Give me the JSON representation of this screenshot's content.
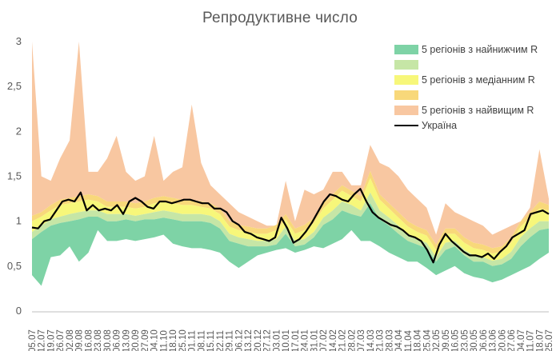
{
  "colors": {
    "band_low_outer": "#7ed3a6",
    "band_low_inner": "#c6e6a6",
    "band_mid_outer": "#f7f77a",
    "band_mid_inner": "#f8d87a",
    "band_high": "#f8c7a1",
    "line_ukraine": "#000000",
    "axis_text": "#595959"
  },
  "chart_data": {
    "type": "area",
    "title": "Репродуктивне число",
    "xlabel": "",
    "ylabel": "",
    "ylim": [
      0,
      3
    ],
    "yticks": [
      0,
      0.5,
      1,
      1.5,
      2,
      2.5,
      3
    ],
    "ytick_labels": [
      "0",
      "0,5",
      "1",
      "1,5",
      "2",
      "2,5",
      "3"
    ],
    "grid": false,
    "legend_position": "top-right",
    "x_tick_labels": [
      "05.07",
      "12.07",
      "19.07",
      "26.07",
      "02.08",
      "09.08",
      "16.08",
      "23.08",
      "30.08",
      "06.09",
      "13.09",
      "20.09",
      "27.09",
      "04.10",
      "11.10",
      "18.10",
      "25.10",
      "01.11",
      "08.11",
      "15.11",
      "22.11",
      "29.11",
      "06.12",
      "13.12",
      "20.12",
      "27.12",
      "03.01",
      "10.01",
      "17.01",
      "24.01",
      "31.01",
      "07.02",
      "14.02",
      "21.02",
      "28.02",
      "07.03",
      "14.03",
      "21.03",
      "28.03",
      "04.04",
      "11.04",
      "18.04",
      "25.04",
      "02.05",
      "09.05",
      "16.05",
      "23.05",
      "30.05",
      "06.06",
      "13.06",
      "20.06",
      "27.06",
      "04.07",
      "11.07",
      "18.07",
      "25.07"
    ],
    "series": [
      {
        "name": "5 регіонів з найнижчим R",
        "band": "low",
        "values_min": [
          0.4,
          0.28,
          0.6,
          0.62,
          0.72,
          0.55,
          0.65,
          0.9,
          0.78,
          0.78,
          0.8,
          0.78,
          0.8,
          0.82,
          0.85,
          0.75,
          0.72,
          0.7,
          0.7,
          0.68,
          0.65,
          0.55,
          0.48,
          0.55,
          0.62,
          0.65,
          0.68,
          0.7,
          0.65,
          0.68,
          0.72,
          0.7,
          0.75,
          0.8,
          0.9,
          0.78,
          0.78,
          0.72,
          0.65,
          0.6,
          0.55,
          0.55,
          0.48,
          0.4,
          0.45,
          0.5,
          0.42,
          0.38,
          0.36,
          0.32,
          0.35,
          0.4,
          0.45,
          0.5,
          0.58,
          0.65
        ],
        "values_max": [
          0.8,
          0.88,
          0.95,
          0.98,
          1.0,
          1.02,
          1.05,
          1.05,
          1.0,
          1.0,
          1.02,
          1.0,
          1.02,
          1.02,
          1.04,
          1.02,
          1.0,
          1.0,
          1.0,
          0.98,
          0.92,
          0.78,
          0.75,
          0.72,
          0.72,
          0.72,
          0.74,
          0.86,
          0.72,
          0.74,
          0.82,
          0.96,
          1.02,
          1.12,
          1.08,
          1.05,
          1.2,
          1.02,
          0.95,
          0.86,
          0.78,
          0.74,
          0.7,
          0.55,
          0.68,
          0.72,
          0.62,
          0.55,
          0.55,
          0.5,
          0.52,
          0.58,
          0.72,
          0.82,
          0.9,
          0.92
        ]
      },
      {
        "name": "",
        "band": "low-inner",
        "values_min": [
          0.8,
          0.88,
          0.95,
          0.98,
          1.0,
          1.02,
          1.05,
          1.05,
          1.0,
          1.0,
          1.02,
          1.0,
          1.02,
          1.02,
          1.04,
          1.02,
          1.0,
          1.0,
          1.0,
          0.98,
          0.92,
          0.78,
          0.75,
          0.72,
          0.72,
          0.72,
          0.74,
          0.86,
          0.72,
          0.74,
          0.82,
          0.96,
          1.02,
          1.12,
          1.08,
          1.05,
          1.2,
          1.02,
          0.95,
          0.86,
          0.78,
          0.74,
          0.7,
          0.55,
          0.68,
          0.72,
          0.62,
          0.55,
          0.55,
          0.5,
          0.52,
          0.58,
          0.72,
          0.82,
          0.9,
          0.92
        ],
        "values_max": [
          0.88,
          0.95,
          1.02,
          1.05,
          1.08,
          1.1,
          1.12,
          1.12,
          1.08,
          1.08,
          1.08,
          1.06,
          1.08,
          1.1,
          1.12,
          1.1,
          1.08,
          1.08,
          1.08,
          1.06,
          1.0,
          0.86,
          0.82,
          0.8,
          0.78,
          0.78,
          0.8,
          0.94,
          0.78,
          0.8,
          0.88,
          1.04,
          1.12,
          1.22,
          1.18,
          1.12,
          1.32,
          1.12,
          1.04,
          0.95,
          0.86,
          0.8,
          0.76,
          0.6,
          0.76,
          0.78,
          0.68,
          0.62,
          0.6,
          0.56,
          0.58,
          0.66,
          0.82,
          0.92,
          1.0,
          1.0
        ]
      },
      {
        "name": "5 регіонів з медіанним R",
        "band": "mid",
        "values_min": [
          0.88,
          0.95,
          1.02,
          1.05,
          1.08,
          1.1,
          1.12,
          1.12,
          1.08,
          1.08,
          1.08,
          1.06,
          1.08,
          1.1,
          1.12,
          1.1,
          1.08,
          1.08,
          1.08,
          1.06,
          1.0,
          0.86,
          0.82,
          0.8,
          0.78,
          0.78,
          0.8,
          0.94,
          0.78,
          0.8,
          0.88,
          1.04,
          1.12,
          1.22,
          1.18,
          1.12,
          1.32,
          1.12,
          1.04,
          0.95,
          0.86,
          0.8,
          0.76,
          0.6,
          0.76,
          0.78,
          0.68,
          0.62,
          0.6,
          0.56,
          0.58,
          0.66,
          0.82,
          0.92,
          1.0,
          1.0
        ],
        "values_max": [
          1.0,
          1.05,
          1.12,
          1.18,
          1.2,
          1.22,
          1.24,
          1.22,
          1.16,
          1.16,
          1.16,
          1.14,
          1.16,
          1.2,
          1.22,
          1.2,
          1.18,
          1.18,
          1.16,
          1.14,
          1.08,
          0.94,
          0.9,
          0.88,
          0.86,
          0.86,
          0.9,
          1.02,
          0.86,
          0.9,
          0.98,
          1.14,
          1.24,
          1.34,
          1.28,
          1.22,
          1.48,
          1.24,
          1.14,
          1.04,
          0.94,
          0.88,
          0.84,
          0.68,
          0.86,
          0.86,
          0.76,
          0.7,
          0.68,
          0.64,
          0.66,
          0.76,
          0.94,
          1.04,
          1.14,
          1.12
        ]
      },
      {
        "name": "",
        "band": "mid-inner",
        "values_min": [
          1.0,
          1.05,
          1.12,
          1.18,
          1.2,
          1.22,
          1.24,
          1.22,
          1.16,
          1.16,
          1.16,
          1.14,
          1.16,
          1.2,
          1.22,
          1.2,
          1.18,
          1.18,
          1.16,
          1.14,
          1.08,
          0.94,
          0.9,
          0.88,
          0.86,
          0.86,
          0.9,
          1.02,
          0.86,
          0.9,
          0.98,
          1.14,
          1.24,
          1.34,
          1.28,
          1.22,
          1.48,
          1.24,
          1.14,
          1.04,
          0.94,
          0.88,
          0.84,
          0.68,
          0.86,
          0.86,
          0.76,
          0.7,
          0.68,
          0.64,
          0.66,
          0.76,
          0.94,
          1.04,
          1.14,
          1.12
        ],
        "values_max": [
          1.06,
          1.1,
          1.18,
          1.24,
          1.26,
          1.28,
          1.3,
          1.28,
          1.22,
          1.22,
          1.22,
          1.2,
          1.22,
          1.26,
          1.28,
          1.26,
          1.24,
          1.24,
          1.22,
          1.2,
          1.14,
          1.0,
          0.96,
          0.94,
          0.92,
          0.92,
          0.96,
          1.08,
          0.92,
          0.96,
          1.04,
          1.2,
          1.3,
          1.4,
          1.34,
          1.28,
          1.56,
          1.3,
          1.2,
          1.1,
          1.0,
          0.94,
          0.9,
          0.74,
          0.92,
          0.92,
          0.82,
          0.76,
          0.74,
          0.7,
          0.72,
          0.82,
          1.0,
          1.1,
          1.22,
          1.18
        ]
      },
      {
        "name": "5 регіонів з найвищим R",
        "band": "high",
        "values_min": [
          1.06,
          1.1,
          1.18,
          1.24,
          1.26,
          1.28,
          1.3,
          1.28,
          1.22,
          1.22,
          1.22,
          1.2,
          1.22,
          1.26,
          1.28,
          1.26,
          1.24,
          1.24,
          1.22,
          1.2,
          1.14,
          1.0,
          0.96,
          0.94,
          0.92,
          0.92,
          0.96,
          1.08,
          0.92,
          0.96,
          1.04,
          1.2,
          1.3,
          1.4,
          1.34,
          1.28,
          1.56,
          1.3,
          1.2,
          1.1,
          1.0,
          0.94,
          0.9,
          0.74,
          0.92,
          0.92,
          0.82,
          0.76,
          0.74,
          0.7,
          0.72,
          0.82,
          1.0,
          1.1,
          1.22,
          1.18
        ],
        "values_max": [
          3.0,
          1.5,
          1.45,
          1.7,
          1.9,
          3.0,
          1.55,
          1.55,
          1.7,
          1.95,
          1.55,
          1.45,
          1.5,
          1.95,
          1.45,
          1.55,
          1.6,
          2.3,
          1.65,
          1.4,
          1.3,
          1.2,
          1.1,
          1.05,
          1.0,
          0.95,
          0.95,
          1.45,
          1.0,
          1.35,
          1.3,
          1.35,
          1.55,
          1.55,
          1.4,
          1.4,
          1.85,
          1.65,
          1.6,
          1.5,
          1.35,
          1.25,
          1.15,
          0.85,
          1.2,
          1.1,
          1.05,
          1.0,
          0.95,
          0.85,
          0.9,
          0.95,
          1.0,
          1.15,
          1.8,
          1.25
        ]
      },
      {
        "name": "Україна",
        "band": "line",
        "values": [
          0.93,
          0.92,
          1.0,
          1.02,
          1.12,
          1.22,
          1.24,
          1.22,
          1.32,
          1.12,
          1.18,
          1.12,
          1.14,
          1.12,
          1.18,
          1.08,
          1.22,
          1.26,
          1.22,
          1.16,
          1.14,
          1.22,
          1.22,
          1.2,
          1.22,
          1.24,
          1.24,
          1.22,
          1.2,
          1.2,
          1.14,
          1.14,
          1.1,
          1.0,
          0.96,
          0.88,
          0.86,
          0.82,
          0.8,
          0.78,
          0.82,
          1.04,
          0.92,
          0.76,
          0.8,
          0.88,
          0.98,
          1.1,
          1.22,
          1.3,
          1.28,
          1.24,
          1.22,
          1.3,
          1.36,
          1.22,
          1.1,
          1.04,
          1.0,
          0.96,
          0.94,
          0.9,
          0.84,
          0.82,
          0.78,
          0.68,
          0.54,
          0.74,
          0.86,
          0.78,
          0.72,
          0.66,
          0.62,
          0.62,
          0.6,
          0.64,
          0.58,
          0.66,
          0.72,
          0.82,
          0.86,
          0.9,
          1.08,
          1.1,
          1.12,
          1.08
        ]
      }
    ]
  }
}
